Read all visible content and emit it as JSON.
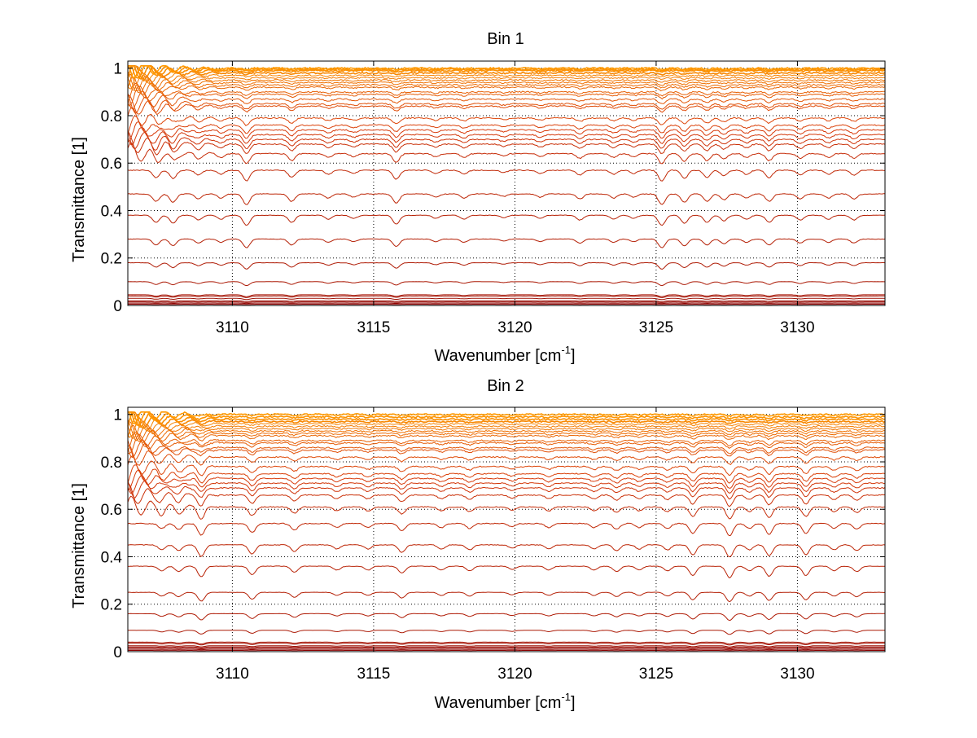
{
  "chart_data": [
    {
      "type": "line",
      "title": "Bin 1",
      "xlabel": "Wavenumber [cm",
      "xlabel_sup": "-1",
      "xlabel_suffix": "]",
      "ylabel": "Transmittance [1]",
      "xlim": [
        3106.3,
        3133.1
      ],
      "ylim": [
        0,
        1.03
      ],
      "xticks": [
        3110,
        3115,
        3120,
        3125,
        3130
      ],
      "yticks": [
        0,
        0.2,
        0.4,
        0.6,
        0.8,
        1
      ],
      "grid": true,
      "color_low": "#8B0000",
      "color_mid": "#D83A0A",
      "color_high": "#FF9900",
      "baselines": [
        0.005,
        0.01,
        0.015,
        0.02,
        0.03,
        0.04,
        0.045,
        0.1,
        0.18,
        0.28,
        0.38,
        0.47,
        0.57,
        0.64,
        0.68,
        0.7,
        0.72,
        0.74,
        0.76,
        0.79,
        0.84,
        0.85,
        0.87,
        0.89,
        0.9,
        0.92,
        0.93,
        0.94,
        0.95,
        0.96,
        0.97,
        0.98,
        0.99,
        0.995,
        1.0
      ],
      "absorption_lines": [
        {
          "x": 3107.3,
          "depth": 0.09
        },
        {
          "x": 3107.9,
          "depth": 0.1
        },
        {
          "x": 3108.8,
          "depth": 0.06
        },
        {
          "x": 3109.6,
          "depth": 0.05
        },
        {
          "x": 3110.5,
          "depth": 0.13
        },
        {
          "x": 3112.1,
          "depth": 0.09
        },
        {
          "x": 3113.4,
          "depth": 0.05
        },
        {
          "x": 3114.3,
          "depth": 0.04
        },
        {
          "x": 3115.8,
          "depth": 0.11
        },
        {
          "x": 3117.2,
          "depth": 0.04
        },
        {
          "x": 3118.2,
          "depth": 0.05
        },
        {
          "x": 3119.6,
          "depth": 0.03
        },
        {
          "x": 3120.9,
          "depth": 0.04
        },
        {
          "x": 3122.3,
          "depth": 0.06
        },
        {
          "x": 3123.5,
          "depth": 0.05
        },
        {
          "x": 3124.2,
          "depth": 0.04
        },
        {
          "x": 3125.2,
          "depth": 0.13
        },
        {
          "x": 3126.0,
          "depth": 0.1
        },
        {
          "x": 3126.8,
          "depth": 0.09
        },
        {
          "x": 3127.4,
          "depth": 0.07
        },
        {
          "x": 3128.2,
          "depth": 0.05
        },
        {
          "x": 3129.0,
          "depth": 0.09
        },
        {
          "x": 3130.1,
          "depth": 0.06
        },
        {
          "x": 3131.1,
          "depth": 0.05
        },
        {
          "x": 3132.0,
          "depth": 0.06
        }
      ]
    },
    {
      "type": "line",
      "title": "Bin 2",
      "xlabel": "Wavenumber [cm",
      "xlabel_sup": "-1",
      "xlabel_suffix": "]",
      "ylabel": "Transmittance [1]",
      "xlim": [
        3106.3,
        3133.1
      ],
      "ylim": [
        0,
        1.03
      ],
      "xticks": [
        3110,
        3115,
        3120,
        3125,
        3130
      ],
      "yticks": [
        0,
        0.2,
        0.4,
        0.6,
        0.8,
        1
      ],
      "grid": true,
      "color_low": "#8B0000",
      "color_mid": "#D83A0A",
      "color_high": "#FF9900",
      "baselines": [
        0.005,
        0.01,
        0.015,
        0.02,
        0.025,
        0.035,
        0.04,
        0.09,
        0.16,
        0.25,
        0.36,
        0.45,
        0.54,
        0.61,
        0.66,
        0.69,
        0.71,
        0.73,
        0.75,
        0.78,
        0.82,
        0.85,
        0.86,
        0.88,
        0.89,
        0.91,
        0.92,
        0.93,
        0.94,
        0.95,
        0.96,
        0.97,
        0.98,
        0.99,
        1.0
      ],
      "absorption_lines": [
        {
          "x": 3107.5,
          "depth": 0.06
        },
        {
          "x": 3108.1,
          "depth": 0.07
        },
        {
          "x": 3108.9,
          "depth": 0.14
        },
        {
          "x": 3110.7,
          "depth": 0.11
        },
        {
          "x": 3112.2,
          "depth": 0.08
        },
        {
          "x": 3113.7,
          "depth": 0.05
        },
        {
          "x": 3114.8,
          "depth": 0.05
        },
        {
          "x": 3116.0,
          "depth": 0.09
        },
        {
          "x": 3117.4,
          "depth": 0.05
        },
        {
          "x": 3118.4,
          "depth": 0.06
        },
        {
          "x": 3119.9,
          "depth": 0.04
        },
        {
          "x": 3121.2,
          "depth": 0.05
        },
        {
          "x": 3122.8,
          "depth": 0.05
        },
        {
          "x": 3123.6,
          "depth": 0.07
        },
        {
          "x": 3124.4,
          "depth": 0.05
        },
        {
          "x": 3125.4,
          "depth": 0.06
        },
        {
          "x": 3126.3,
          "depth": 0.12
        },
        {
          "x": 3127.6,
          "depth": 0.15
        },
        {
          "x": 3128.3,
          "depth": 0.06
        },
        {
          "x": 3129.0,
          "depth": 0.13
        },
        {
          "x": 3130.3,
          "depth": 0.12
        },
        {
          "x": 3131.3,
          "depth": 0.06
        },
        {
          "x": 3132.1,
          "depth": 0.07
        }
      ]
    }
  ]
}
